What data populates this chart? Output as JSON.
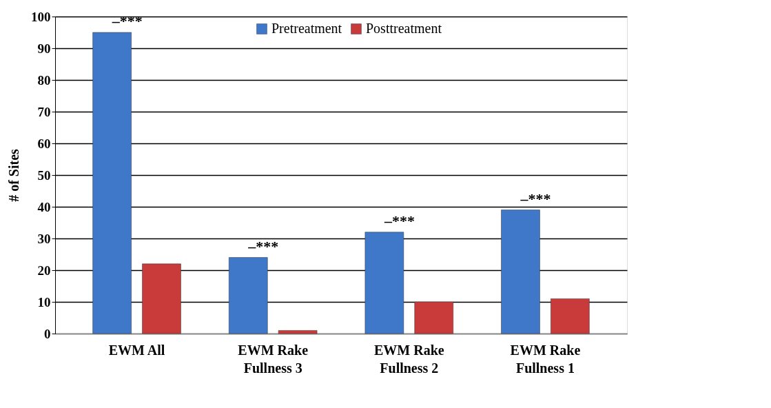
{
  "chart_data": {
    "type": "bar",
    "ylabel": "# of Sites",
    "categories": [
      "EWM All",
      "EWM Rake Fullness 3",
      "EWM Rake Fullness 2",
      "EWM Rake Fullness 1"
    ],
    "series": [
      {
        "name": "Pretreatment",
        "color": "#3f78c9",
        "values": [
          95,
          24,
          32,
          39
        ]
      },
      {
        "name": "Posttreatment",
        "color": "#c93a3a",
        "values": [
          22,
          1,
          10,
          11
        ]
      }
    ],
    "ylim": [
      0,
      100
    ],
    "yticks": [
      0,
      10,
      20,
      30,
      40,
      50,
      60,
      70,
      80,
      90,
      100
    ],
    "grid": "y",
    "legend": "top",
    "annotations": [
      "–***",
      "–***",
      "–***",
      "–***"
    ]
  }
}
